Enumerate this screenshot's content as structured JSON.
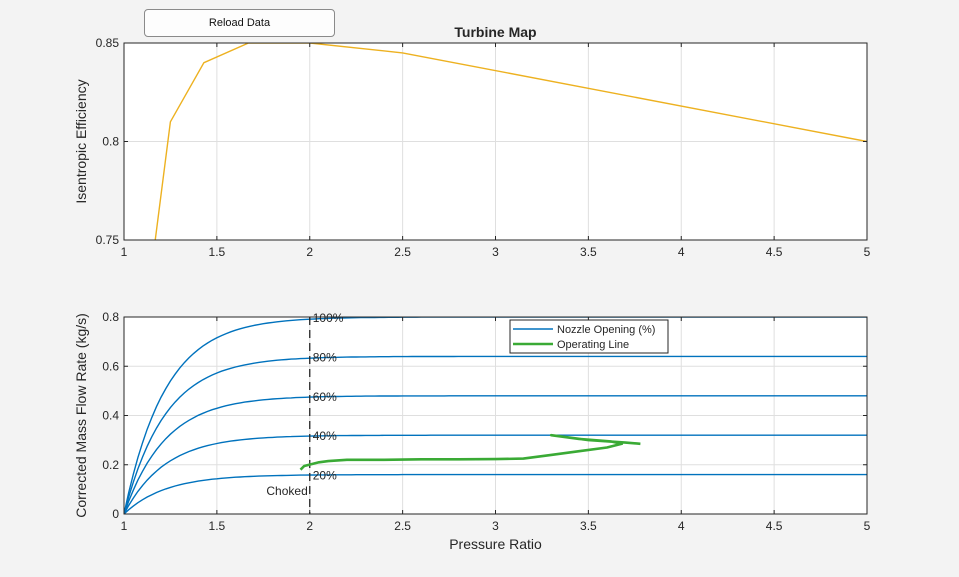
{
  "controls": {
    "reload_label": "Reload Data"
  },
  "chart_data": [
    {
      "type": "line",
      "title": "Turbine Map",
      "xlabel": "",
      "ylabel": "Isentropic Efficiency",
      "xlim": [
        1,
        5
      ],
      "ylim": [
        0.75,
        0.85
      ],
      "xticks": [
        1,
        1.5,
        2,
        2.5,
        3,
        3.5,
        4,
        4.5,
        5
      ],
      "xtick_labels": [
        "1",
        "1.5",
        "2",
        "2.5",
        "3",
        "3.5",
        "4",
        "4.5",
        "5"
      ],
      "yticks": [
        0.75,
        0.8,
        0.85
      ],
      "ytick_labels": [
        "0.75",
        "0.8",
        "0.85"
      ],
      "grid": true,
      "series": [
        {
          "color": "#EDB120",
          "x": [
            1.1,
            1.25,
            1.43,
            1.67,
            2.0,
            2.5,
            5.0
          ],
          "y": [
            0.7,
            0.81,
            0.84,
            0.85,
            0.85,
            0.845,
            0.8
          ]
        }
      ]
    },
    {
      "type": "line",
      "title": "",
      "xlabel": "Pressure Ratio",
      "ylabel": "Corrected Mass Flow Rate (kg/s)",
      "xlim": [
        1,
        5
      ],
      "ylim": [
        0,
        0.8
      ],
      "xticks": [
        1,
        1.5,
        2,
        2.5,
        3,
        3.5,
        4,
        4.5,
        5
      ],
      "xtick_labels": [
        "1",
        "1.5",
        "2",
        "2.5",
        "3",
        "3.5",
        "4",
        "4.5",
        "5"
      ],
      "yticks": [
        0,
        0.2,
        0.4,
        0.6,
        0.8
      ],
      "ytick_labels": [
        "0",
        "0.2",
        "0.4",
        "0.6",
        "0.8"
      ],
      "grid": true,
      "legend": {
        "placement": "top-center",
        "entries": [
          {
            "label": "Nozzle Opening (%)",
            "color": "#0072BD"
          },
          {
            "label": "Operating Line",
            "color": "#3AAA35"
          }
        ]
      },
      "nozzle_openings": [
        {
          "label": "20%",
          "mdot_max": 0.16
        },
        {
          "label": "40%",
          "mdot_max": 0.32
        },
        {
          "label": "60%",
          "mdot_max": 0.48
        },
        {
          "label": "80%",
          "mdot_max": 0.64
        },
        {
          "label": "100%",
          "mdot_max": 0.8
        }
      ],
      "choke": {
        "pressure_ratio": 2.0,
        "label": "Choked"
      },
      "operating_line": {
        "x": [
          1.95,
          1.97,
          2.05,
          2.1,
          2.2,
          2.4,
          2.6,
          2.8,
          3.0,
          3.15,
          3.3,
          3.45,
          3.6,
          3.68,
          3.62,
          3.45,
          3.3,
          3.5,
          3.7,
          3.78
        ],
        "y": [
          0.18,
          0.195,
          0.21,
          0.215,
          0.22,
          0.22,
          0.222,
          0.222,
          0.223,
          0.225,
          0.24,
          0.255,
          0.27,
          0.285,
          0.295,
          0.305,
          0.32,
          0.3,
          0.29,
          0.285
        ]
      }
    }
  ]
}
